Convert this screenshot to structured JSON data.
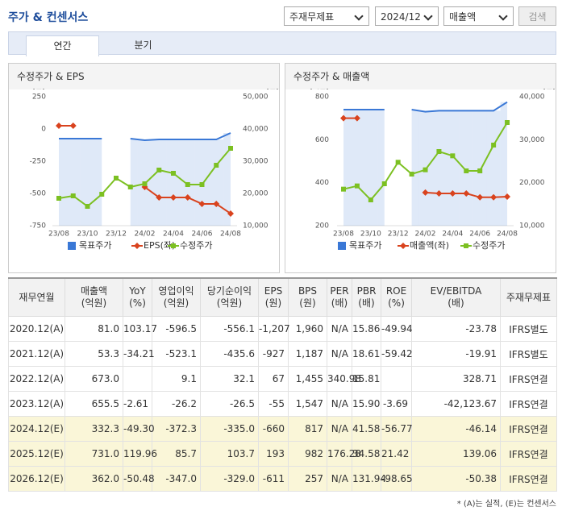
{
  "header": {
    "title": "주가 & 컨센서스",
    "selects": [
      "주재무제표",
      "2024/12",
      "매출액"
    ],
    "button": "검색"
  },
  "tabs": [
    "연간",
    "분기"
  ],
  "chart_data": [
    {
      "type": "line",
      "title": "수정주가 & EPS",
      "ylabel": "[원]",
      "y2label": "[원]",
      "categories": [
        "23/08",
        null,
        "23/10",
        null,
        "23/12",
        null,
        "24/02",
        null,
        "24/04",
        null,
        "24/06",
        null,
        "24/08"
      ],
      "ylim": [
        -750,
        250
      ],
      "yticks": [
        250,
        0,
        -250,
        -500,
        -750
      ],
      "y2lim": [
        10000,
        50000
      ],
      "y2ticks": [
        {
          "value": 50000,
          "label": "50,000"
        },
        {
          "value": 40000,
          "label": "40,000"
        },
        {
          "value": 30000,
          "label": "30,000"
        },
        {
          "value": 20000,
          "label": "20,000"
        },
        {
          "value": 10000,
          "label": "10,000"
        }
      ],
      "grid": false,
      "series": [
        {
          "name": "목표주가",
          "color": "#3a78d6",
          "axis": "y2",
          "area": true,
          "marker": "none",
          "values": [
            37000,
            37000,
            37000,
            37000,
            null,
            37000,
            36500,
            36750,
            36750,
            36750,
            36750,
            36750,
            38750
          ]
        },
        {
          "name": "EPS(좌)",
          "color": "#d9431e",
          "axis": "y",
          "area": false,
          "marker": "diamond",
          "values": [
            25,
            25,
            null,
            null,
            null,
            null,
            -450,
            -531,
            -531,
            -531,
            -581,
            -581,
            -656
          ]
        },
        {
          "name": "수정주가",
          "color": "#7cc022",
          "axis": "y2",
          "area": false,
          "marker": "square",
          "values": [
            18500,
            19250,
            16000,
            19750,
            24750,
            22000,
            23000,
            27250,
            26250,
            22750,
            22750,
            28750,
            34000
          ]
        }
      ]
    },
    {
      "type": "line",
      "title": "수정주가 & 매출액",
      "ylabel": "[억원]",
      "y2label": "[원]",
      "categories": [
        "23/08",
        null,
        "23/10",
        null,
        "23/12",
        null,
        "24/02",
        null,
        "24/04",
        null,
        "24/06",
        null,
        "24/08"
      ],
      "ylim": [
        200,
        800
      ],
      "yticks": [
        800,
        600,
        400,
        200
      ],
      "y2lim": [
        10000,
        40000
      ],
      "y2ticks": [
        {
          "value": 40000,
          "label": "40,000"
        },
        {
          "value": 30000,
          "label": "30,000"
        },
        {
          "value": 20000,
          "label": "20,000"
        },
        {
          "value": 10000,
          "label": "10,000"
        }
      ],
      "grid": false,
      "series": [
        {
          "name": "목표주가",
          "color": "#3a78d6",
          "axis": "y2",
          "area": true,
          "marker": "none",
          "values": [
            37000,
            37000,
            37000,
            37000,
            null,
            37000,
            36500,
            36750,
            36750,
            36750,
            36750,
            36750,
            38750
          ]
        },
        {
          "name": "매출액(좌)",
          "color": "#d9431e",
          "axis": "y",
          "area": false,
          "marker": "diamond",
          "values": [
            700,
            700,
            null,
            null,
            null,
            null,
            354,
            350,
            350,
            350,
            332,
            332,
            335
          ]
        },
        {
          "name": "수정주가",
          "color": "#7cc022",
          "axis": "y2",
          "area": false,
          "marker": "square",
          "values": [
            18500,
            19250,
            16000,
            19750,
            24750,
            22000,
            23000,
            27250,
            26250,
            22750,
            22750,
            28750,
            34000
          ]
        }
      ]
    }
  ],
  "table": {
    "columns": [
      {
        "label": "재무연월"
      },
      {
        "label": "매출액",
        "unit": "(억원)"
      },
      {
        "label": "YoY",
        "unit": "(%)"
      },
      {
        "label": "영업이익",
        "unit": "(억원)"
      },
      {
        "label": "당기순이익",
        "unit": "(억원)"
      },
      {
        "label": "EPS",
        "unit": "(원)"
      },
      {
        "label": "BPS",
        "unit": "(원)"
      },
      {
        "label": "PER",
        "unit": "(배)"
      },
      {
        "label": "PBR",
        "unit": "(배)"
      },
      {
        "label": "ROE",
        "unit": "(%)"
      },
      {
        "label": "EV/EBITDA",
        "unit": "(배)"
      },
      {
        "label": "주재무제표"
      }
    ],
    "rows": [
      [
        "2020.12(A)",
        "81.0",
        "103.17",
        "-596.5",
        "-556.1",
        "-1,207",
        "1,960",
        "N/A",
        "15.86",
        "-49.94",
        "-23.78",
        "IFRS별도"
      ],
      [
        "2021.12(A)",
        "53.3",
        "-34.21",
        "-523.1",
        "-435.6",
        "-927",
        "1,187",
        "N/A",
        "18.61",
        "-59.42",
        "-19.91",
        "IFRS별도"
      ],
      [
        "2022.12(A)",
        "673.0",
        null,
        "9.1",
        "32.1",
        "67",
        "1,455",
        "340.98",
        "15.81",
        null,
        "328.71",
        "IFRS연결"
      ],
      [
        "2023.12(A)",
        "655.5",
        "-2.61",
        "-26.2",
        "-26.5",
        "-55",
        "1,547",
        "N/A",
        "15.90",
        "-3.69",
        "-42,123.67",
        "IFRS연결"
      ],
      [
        "2024.12(E)",
        "332.3",
        "-49.30",
        "-372.3",
        "-335.0",
        "-660",
        "817",
        "N/A",
        "41.58",
        "-56.77",
        "-46.14",
        "IFRS연결"
      ],
      [
        "2025.12(E)",
        "731.0",
        "119.96",
        "85.7",
        "103.7",
        "193",
        "982",
        "176.28",
        "34.58",
        "21.42",
        "139.06",
        "IFRS연결"
      ],
      [
        "2026.12(E)",
        "362.0",
        "-50.48",
        "-347.0",
        "-329.0",
        "-611",
        "257",
        "N/A",
        "131.94",
        "-98.65",
        "-50.38",
        "IFRS연결"
      ]
    ]
  },
  "footnote": "* (A)는 실적, (E)는 컨센서스"
}
